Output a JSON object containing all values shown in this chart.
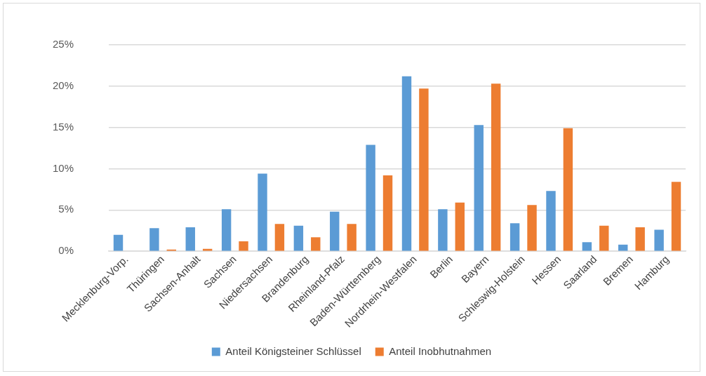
{
  "chart_data": {
    "type": "bar",
    "categories": [
      "Mecklenburg-Vorp.",
      "Thüringen",
      "Sachsen-Anhalt",
      "Sachsen",
      "Niedersachsen",
      "Brandenburg",
      "Rheinland-Pfalz",
      "Baden-Württemberg",
      "Nordrhein-Westfalen",
      "Berlin",
      "Bayern",
      "Schleswig-Holstein",
      "Hessen",
      "Saarland",
      "Bremen",
      "Hamburg"
    ],
    "series": [
      {
        "name": "Anteil Königsteiner Schlüssel",
        "color": "#5b9bd5",
        "values": [
          2.0,
          2.8,
          2.9,
          5.1,
          9.4,
          3.1,
          4.8,
          12.9,
          21.2,
          5.1,
          15.3,
          3.4,
          7.3,
          1.1,
          0.8,
          2.6
        ]
      },
      {
        "name": "Anteil Inobhutnahmen",
        "color": "#ed7d31",
        "values": [
          0,
          0.2,
          0.3,
          1.2,
          3.3,
          1.7,
          3.3,
          9.2,
          19.7,
          5.9,
          20.3,
          5.6,
          14.9,
          3.1,
          2.9,
          8.4
        ]
      }
    ],
    "ylim": [
      0,
      25
    ],
    "yticks": [
      {
        "value": 0,
        "label": "0%"
      },
      {
        "value": 5,
        "label": "5%"
      },
      {
        "value": 10,
        "label": "10%"
      },
      {
        "value": 15,
        "label": "15%"
      },
      {
        "value": 20,
        "label": "20%"
      },
      {
        "value": 25,
        "label": "25%"
      }
    ],
    "grid": "y",
    "legend": "bottom"
  }
}
